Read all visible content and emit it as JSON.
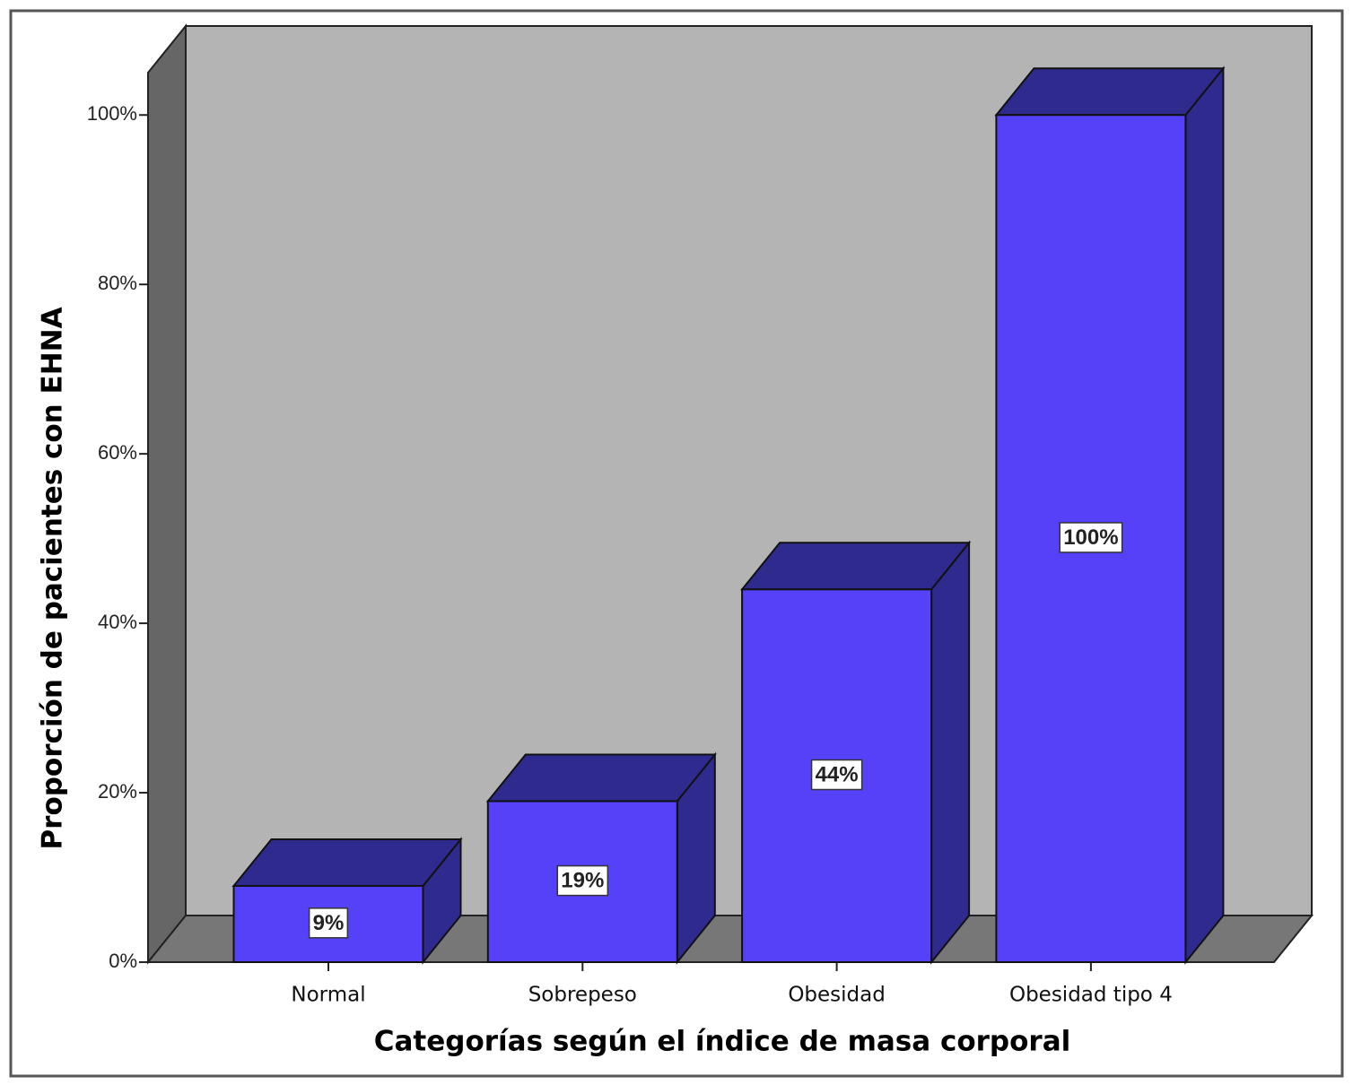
{
  "chart_data": {
    "type": "bar3d",
    "x_label": "Categorías según el índice de masa corporal",
    "y_label": "Proporción de pacientes con EHNA",
    "categories": [
      "Normal",
      "Sobrepeso",
      "Obesidad",
      "Obesidad tipo 4"
    ],
    "values": [
      9,
      19,
      44,
      100
    ],
    "value_labels": [
      "9%",
      "19%",
      "44%",
      "100%"
    ],
    "color": "#5542f8",
    "shade_color": "#2f2a8e",
    "ylim": [
      0,
      105
    ],
    "yticks": [
      {
        "value": 0,
        "label": "0%"
      },
      {
        "value": 20,
        "label": "20%"
      },
      {
        "value": 40,
        "label": "40%"
      },
      {
        "value": 60,
        "label": "60%"
      },
      {
        "value": 80,
        "label": "80%"
      },
      {
        "value": 100,
        "label": "100%"
      }
    ],
    "grid": false
  }
}
